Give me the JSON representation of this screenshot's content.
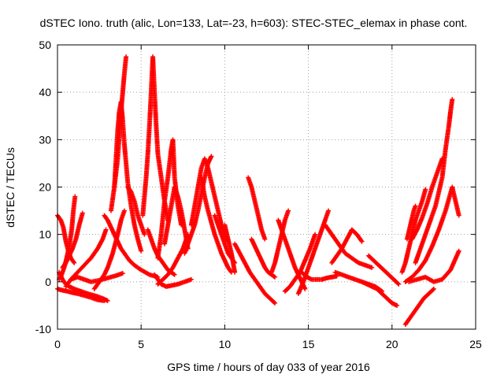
{
  "chart_data": {
    "type": "scatter",
    "title": "dSTEC Iono. truth (alic, Lon=133, Lat=-23, h=603): STEC-STEC_elemax in phase cont.",
    "xlabel": "GPS time / hours of day 033 of year 2016",
    "ylabel": "dSTEC  / TECUs",
    "xlim": [
      0,
      25
    ],
    "ylim": [
      -10,
      50
    ],
    "xticks": [
      0,
      5,
      10,
      15,
      20,
      25
    ],
    "yticks": [
      -10,
      0,
      10,
      20,
      30,
      40,
      50
    ],
    "xtick_labels": [
      "0",
      "5",
      "10",
      "15",
      "20",
      "25"
    ],
    "ytick_labels": [
      "-10",
      "0",
      "10",
      "20",
      "30",
      "40",
      "50"
    ],
    "grid": true,
    "marker": "+",
    "color": "#ff0000",
    "series": [
      {
        "x": [
          0.0,
          0.3,
          0.6,
          0.9,
          1.2,
          1.6,
          2.0,
          2.4,
          2.8
        ],
        "y": [
          -1.5,
          -1.8,
          -2.0,
          -2.3,
          -2.5,
          -2.9,
          -3.3,
          -3.8,
          -4.0
        ]
      },
      {
        "x": [
          0.1,
          0.3,
          0.5,
          0.7,
          1.0,
          1.4,
          1.8,
          2.3,
          2.7,
          3.0
        ],
        "y": [
          2.0,
          0.5,
          -0.5,
          -1.0,
          -1.5,
          -2.0,
          -2.5,
          -3.0,
          -3.5,
          -4.0
        ]
      },
      {
        "x": [
          0.0,
          0.2,
          0.35,
          0.5,
          0.65,
          0.8,
          1.0
        ],
        "y": [
          14.0,
          13.0,
          11.5,
          8.5,
          6.5,
          5.0,
          4.0
        ]
      },
      {
        "x": [
          0.1,
          0.25,
          0.4,
          0.55,
          0.7,
          0.85,
          0.95,
          1.05
        ],
        "y": [
          0.5,
          1.5,
          3.0,
          5.0,
          7.5,
          11.0,
          15.0,
          18.0
        ]
      },
      {
        "x": [
          0.3,
          0.5,
          0.7,
          0.9,
          1.1,
          1.3,
          1.5
        ],
        "y": [
          3.0,
          4.0,
          5.5,
          7.0,
          9.0,
          12.0,
          14.5
        ]
      },
      {
        "x": [
          0.5,
          0.8,
          1.2,
          1.6,
          2.0,
          2.4,
          2.7,
          2.9
        ],
        "y": [
          -1.0,
          0.5,
          2.0,
          3.5,
          5.0,
          7.0,
          9.0,
          11.0
        ]
      },
      {
        "x": [
          0.8,
          1.2,
          1.6,
          2.0,
          2.5,
          3.0,
          3.5,
          3.9
        ],
        "y": [
          0.5,
          1.0,
          0.5,
          0.0,
          0.3,
          0.8,
          1.3,
          1.8
        ]
      },
      {
        "x": [
          2.8,
          3.0,
          3.2,
          3.4,
          3.6,
          3.8,
          4.0,
          4.3,
          4.6,
          5.0,
          5.5,
          6.0
        ],
        "y": [
          14.0,
          13.0,
          11.5,
          10.0,
          8.5,
          7.0,
          6.0,
          4.5,
          3.5,
          2.5,
          1.5,
          1.0
        ]
      },
      {
        "x": [
          2.2,
          2.5,
          2.8,
          3.0,
          3.3,
          3.6,
          3.8,
          4.0
        ],
        "y": [
          -1.5,
          0.0,
          1.5,
          3.0,
          6.0,
          10.0,
          13.0,
          15.0
        ]
      },
      {
        "x": [
          3.4,
          3.5,
          3.6,
          3.7,
          3.8,
          3.9,
          4.0,
          4.1,
          4.2,
          4.4,
          4.6,
          4.8,
          5.0
        ],
        "y": [
          20.0,
          26.0,
          32.0,
          36.0,
          38.0,
          34.0,
          29.0,
          25.0,
          21.0,
          16.0,
          12.0,
          9.0,
          6.5
        ]
      },
      {
        "x": [
          3.2,
          3.4,
          3.6,
          3.7,
          3.8,
          3.9,
          4.0,
          4.1
        ],
        "y": [
          15.0,
          20.0,
          26.0,
          31.0,
          36.0,
          40.0,
          44.0,
          47.5
        ]
      },
      {
        "x": [
          4.2,
          4.4,
          4.6,
          4.8,
          5.0,
          5.2
        ],
        "y": [
          20.0,
          19.0,
          17.0,
          14.0,
          12.0,
          10.0
        ]
      },
      {
        "x": [
          5.1,
          5.2,
          5.3,
          5.4,
          5.5,
          5.6,
          5.7,
          5.8,
          5.9,
          6.0,
          6.2,
          6.4,
          6.6
        ],
        "y": [
          14.0,
          18.0,
          22.0,
          27.0,
          33.0,
          40.0,
          47.5,
          40.0,
          33.0,
          27.0,
          22.0,
          17.0,
          13.0
        ]
      },
      {
        "x": [
          5.4,
          5.6,
          5.8,
          6.0,
          6.2,
          6.4,
          6.6,
          6.8,
          7.0
        ],
        "y": [
          11.0,
          9.0,
          7.0,
          5.5,
          4.5,
          3.5,
          2.5,
          2.0,
          1.5
        ]
      },
      {
        "x": [
          6.0,
          6.2,
          6.4,
          6.6,
          6.7,
          6.8,
          6.9,
          7.0,
          7.2,
          7.4
        ],
        "y": [
          5.0,
          10.0,
          17.0,
          22.0,
          25.0,
          28.0,
          30.0,
          22.0,
          16.0,
          12.0
        ]
      },
      {
        "x": [
          6.4,
          6.6,
          6.8,
          7.0,
          7.2,
          7.4,
          7.6,
          7.8
        ],
        "y": [
          8.0,
          12.0,
          16.0,
          20.0,
          18.0,
          15.0,
          11.0,
          7.0
        ]
      },
      {
        "x": [
          6.0,
          6.3,
          6.6,
          6.9,
          7.2,
          7.5,
          7.8
        ],
        "y": [
          -0.5,
          0.5,
          1.5,
          3.0,
          5.0,
          7.0,
          10.0
        ]
      },
      {
        "x": [
          5.8,
          6.0,
          6.2,
          6.5,
          6.8,
          7.2,
          7.6,
          8.0
        ],
        "y": [
          1.5,
          0.5,
          -0.5,
          -1.0,
          -0.8,
          -0.5,
          0.0,
          0.5
        ]
      },
      {
        "x": [
          8.0,
          8.2,
          8.4,
          8.6,
          8.8,
          9.0,
          9.2,
          9.4,
          9.6,
          9.8,
          10.0,
          10.2
        ],
        "y": [
          12.0,
          16.0,
          20.0,
          24.0,
          26.0,
          24.0,
          21.0,
          18.0,
          15.0,
          12.0,
          10.0,
          8.5
        ]
      },
      {
        "x": [
          7.6,
          7.8,
          8.0,
          8.2,
          8.4,
          8.6,
          8.8,
          9.0,
          9.2
        ],
        "y": [
          6.0,
          8.0,
          10.0,
          12.0,
          15.0,
          18.5,
          22.0,
          25.0,
          26.5
        ]
      },
      {
        "x": [
          8.6,
          8.8,
          9.0,
          9.2,
          9.4,
          9.6,
          9.8,
          10.0,
          10.2,
          10.4
        ],
        "y": [
          22.0,
          18.0,
          15.0,
          12.5,
          10.0,
          8.0,
          6.0,
          4.5,
          3.0,
          2.0
        ]
      },
      {
        "x": [
          9.4,
          9.6,
          9.8,
          10.0,
          10.2,
          10.4,
          10.6
        ],
        "y": [
          14.0,
          12.0,
          10.0,
          8.0,
          6.0,
          5.0,
          4.0
        ]
      },
      {
        "x": [
          10.0,
          10.2,
          10.4,
          10.6
        ],
        "y": [
          12.0,
          9.0,
          6.0,
          2.0
        ]
      },
      {
        "x": [
          10.6,
          10.9,
          11.2,
          11.5,
          11.8,
          12.1,
          12.4,
          12.7,
          13.0
        ],
        "y": [
          8.0,
          6.0,
          4.0,
          2.0,
          0.5,
          -1.0,
          -2.5,
          -3.5,
          -4.5
        ]
      },
      {
        "x": [
          11.4,
          11.6,
          11.8,
          12.0,
          12.2,
          12.4
        ],
        "y": [
          22.0,
          20.0,
          17.0,
          14.0,
          11.0,
          9.0
        ]
      },
      {
        "x": [
          11.6,
          11.8,
          12.0,
          12.2,
          12.4,
          12.6,
          12.8,
          13.0
        ],
        "y": [
          9.0,
          7.5,
          6.0,
          4.5,
          3.0,
          2.0,
          1.5,
          1.0
        ]
      },
      {
        "x": [
          12.8,
          13.0,
          13.2,
          13.4,
          13.6,
          13.8
        ],
        "y": [
          2.0,
          4.0,
          7.0,
          10.0,
          13.0,
          15.0
        ]
      },
      {
        "x": [
          13.2,
          13.4,
          13.6,
          13.8,
          14.0,
          14.2,
          14.4,
          14.6,
          14.8
        ],
        "y": [
          13.0,
          11.0,
          9.0,
          7.0,
          5.0,
          3.0,
          1.5,
          0.0,
          -1.5
        ]
      },
      {
        "x": [
          13.6,
          13.9,
          14.2,
          14.5,
          14.8,
          15.1,
          15.4
        ],
        "y": [
          -2.0,
          -1.0,
          0.5,
          2.0,
          4.5,
          7.0,
          10.0
        ]
      },
      {
        "x": [
          14.4,
          14.7,
          15.0,
          15.3,
          15.6,
          15.9,
          16.2
        ],
        "y": [
          -2.5,
          0.0,
          3.0,
          6.0,
          9.0,
          12.0,
          15.0
        ]
      },
      {
        "x": [
          14.6,
          14.9,
          15.2,
          15.5,
          15.8,
          16.1,
          16.4,
          16.7
        ],
        "y": [
          2.0,
          1.0,
          0.5,
          0.5,
          0.5,
          0.8,
          1.0,
          1.2
        ]
      },
      {
        "x": [
          16.4,
          16.7,
          17.0,
          17.3,
          17.6,
          17.9,
          18.2
        ],
        "y": [
          4.0,
          5.5,
          7.0,
          9.0,
          11.0,
          10.0,
          8.5
        ]
      },
      {
        "x": [
          16.0,
          16.4,
          16.8,
          17.2,
          17.6,
          18.0,
          18.4,
          18.8
        ],
        "y": [
          12.0,
          10.0,
          8.0,
          6.0,
          5.0,
          4.0,
          3.5,
          3.0
        ]
      },
      {
        "x": [
          16.6,
          17.0,
          17.4,
          17.8,
          18.2,
          18.6,
          19.0,
          19.4
        ],
        "y": [
          2.0,
          1.5,
          1.0,
          0.5,
          0.0,
          -0.5,
          -1.0,
          -2.0
        ]
      },
      {
        "x": [
          18.2,
          18.5,
          18.8,
          19.1,
          19.4,
          19.7,
          20.0,
          20.3
        ],
        "y": [
          0.0,
          -0.5,
          -1.0,
          -1.5,
          -2.5,
          -3.5,
          -4.5,
          -5.0
        ]
      },
      {
        "x": [
          18.6,
          18.9,
          19.2,
          19.5,
          19.8,
          20.1,
          20.4
        ],
        "y": [
          5.5,
          4.5,
          3.5,
          2.5,
          1.5,
          0.5,
          -0.5
        ]
      },
      {
        "x": [
          20.6,
          20.8,
          21.0,
          21.2,
          21.4,
          21.6,
          21.8,
          22.0
        ],
        "y": [
          2.0,
          4.0,
          7.0,
          10.0,
          13.0,
          15.0,
          17.0,
          19.5
        ]
      },
      {
        "x": [
          20.9,
          21.0,
          21.1,
          21.2,
          21.3,
          21.4
        ],
        "y": [
          9.0,
          10.5,
          12.0,
          13.5,
          15.0,
          16.0
        ]
      },
      {
        "x": [
          20.8,
          21.2,
          21.6,
          22.0,
          22.4,
          22.8,
          23.2,
          23.6,
          24.0
        ],
        "y": [
          0.0,
          1.0,
          2.5,
          4.5,
          7.5,
          11.0,
          15.0,
          20.0,
          14.0
        ]
      },
      {
        "x": [
          21.4,
          21.8,
          22.2,
          22.6,
          23.0,
          23.2,
          23.4,
          23.5,
          23.6
        ],
        "y": [
          4.0,
          8.0,
          12.0,
          16.0,
          22.0,
          28.0,
          33.0,
          36.0,
          38.5
        ]
      },
      {
        "x": [
          21.2,
          21.5,
          21.8,
          22.1,
          22.4,
          22.7,
          23.0
        ],
        "y": [
          9.0,
          11.0,
          13.5,
          16.5,
          20.0,
          23.0,
          26.0
        ]
      },
      {
        "x": [
          20.8,
          21.0,
          21.3,
          21.6,
          21.9,
          22.2,
          22.5
        ],
        "y": [
          -9.0,
          -8.0,
          -6.5,
          -5.0,
          -3.5,
          -2.5,
          -1.5
        ]
      },
      {
        "x": [
          21.0,
          21.5,
          22.0,
          22.5,
          23.0,
          23.5,
          24.0
        ],
        "y": [
          0.0,
          0.5,
          1.0,
          0.0,
          0.5,
          2.5,
          6.5
        ]
      }
    ]
  }
}
